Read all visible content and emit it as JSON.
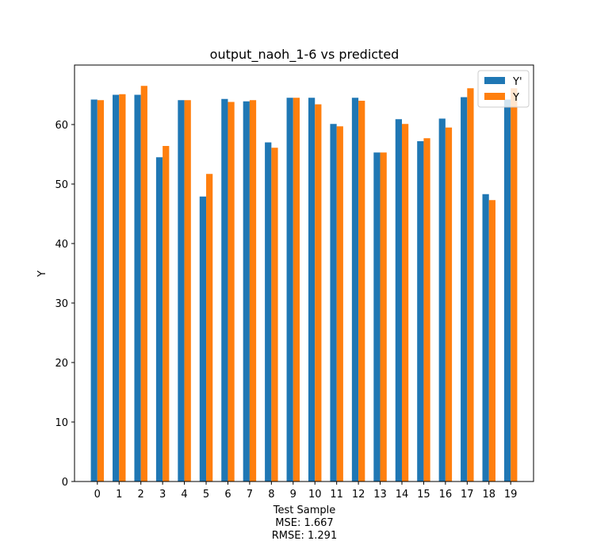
{
  "colors": {
    "Y'": "#1f77b4",
    "Y": "#ff7f0e"
  },
  "chart_data": {
    "type": "bar",
    "title": "output_naoh_1-6 vs predicted",
    "xlabel": "Test Sample",
    "xlabel_lines": [
      "MSE: 1.667",
      "RMSE: 1.291"
    ],
    "ylabel": "Y",
    "ylim": [
      0,
      70
    ],
    "yticks": [
      0,
      10,
      20,
      30,
      40,
      50,
      60
    ],
    "categories": [
      "0",
      "1",
      "2",
      "3",
      "4",
      "5",
      "6",
      "7",
      "8",
      "9",
      "10",
      "11",
      "12",
      "13",
      "14",
      "15",
      "16",
      "17",
      "18",
      "19"
    ],
    "series": [
      {
        "name": "Y'",
        "values": [
          64.2,
          65.0,
          65.0,
          54.5,
          64.1,
          47.9,
          64.3,
          63.9,
          57.0,
          64.5,
          64.5,
          60.1,
          64.5,
          55.3,
          60.9,
          57.2,
          61.0,
          64.6,
          48.3,
          64.2
        ]
      },
      {
        "name": "Y",
        "values": [
          64.1,
          65.1,
          66.5,
          56.4,
          64.1,
          51.7,
          63.8,
          64.1,
          56.1,
          64.5,
          63.4,
          59.7,
          64.0,
          55.3,
          60.1,
          57.7,
          59.5,
          66.1,
          47.3,
          66.1
        ]
      }
    ],
    "legend_position": "top-right",
    "grid": false
  }
}
